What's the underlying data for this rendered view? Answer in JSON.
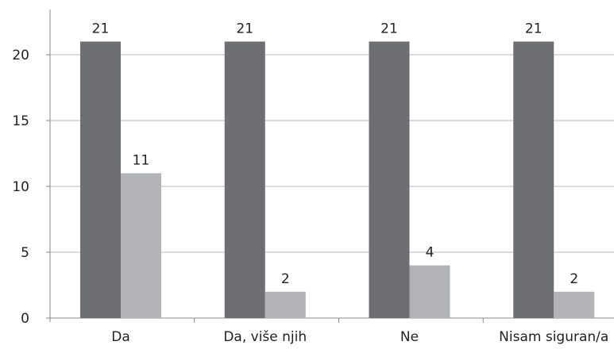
{
  "chart_data": {
    "type": "bar",
    "categories": [
      "Da",
      "Da, više njih",
      "Ne",
      "Nisam siguran/a"
    ],
    "series": [
      {
        "values": [
          21,
          21,
          21,
          21
        ],
        "color": "#6e6f73"
      },
      {
        "values": [
          11,
          2,
          4,
          2
        ],
        "color": "#b2b3b7"
      }
    ],
    "title": "",
    "xlabel": "",
    "ylabel": "",
    "ylim": [
      0,
      23
    ],
    "yticks": [
      0,
      5,
      10,
      15,
      20
    ],
    "grid": true,
    "legend": "none",
    "gridline_color": "#b9b9b9",
    "axis_color": "#888888"
  }
}
